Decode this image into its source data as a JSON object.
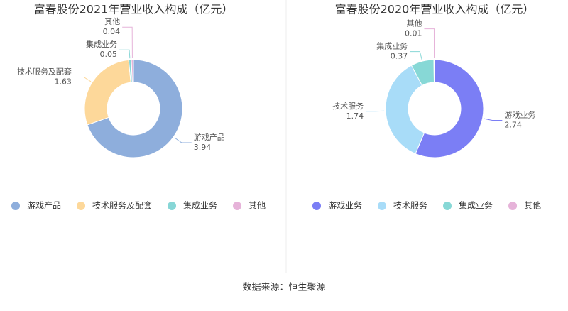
{
  "chart_data": [
    {
      "type": "pie",
      "title": "富春股份2021年营业收入构成（亿元）",
      "categories": [
        "游戏产品",
        "技术服务及配套",
        "集成业务",
        "其他"
      ],
      "values": [
        3.94,
        1.63,
        0.05,
        0.04
      ],
      "colors": [
        "#8eaedc",
        "#fdd89a",
        "#87d6d6",
        "#e6b3d9"
      ]
    },
    {
      "type": "pie",
      "title": "富春股份2020年营业收入构成（亿元）",
      "categories": [
        "游戏业务",
        "技术服务",
        "集成业务",
        "其他"
      ],
      "values": [
        2.74,
        1.74,
        0.37,
        0.01
      ],
      "colors": [
        "#7b7ef5",
        "#a8dcf8",
        "#87d8d6",
        "#e6b3d9"
      ]
    }
  ],
  "source": "数据来源：恒生聚源"
}
